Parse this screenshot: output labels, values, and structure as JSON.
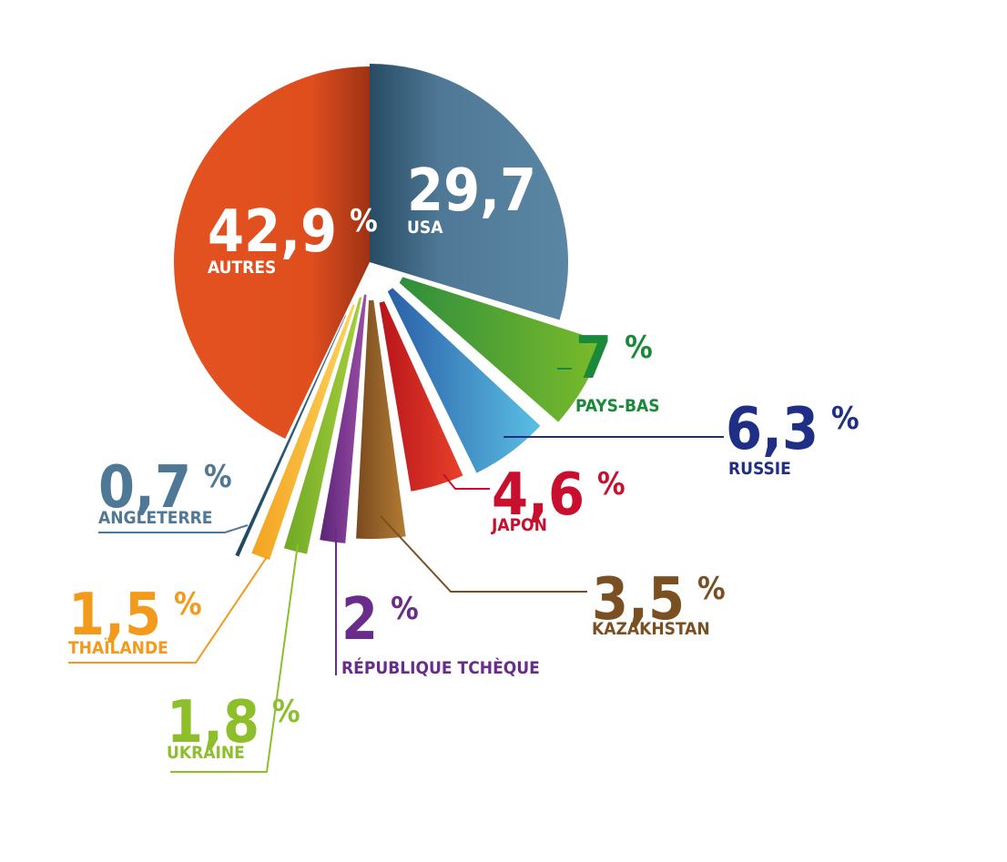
{
  "chart_data": {
    "type": "pie",
    "title": "",
    "slices": [
      {
        "label": "USA",
        "value": 29.7,
        "value_text": "29,7",
        "unit": "%",
        "color": "#4f7896"
      },
      {
        "label": "PAYS-BAS",
        "value": 7,
        "value_text": "7",
        "unit": "%",
        "color": "#6aac2a"
      },
      {
        "label": "RUSSIE",
        "value": 6.3,
        "value_text": "6,3",
        "unit": "%",
        "color": "#3ea6d6"
      },
      {
        "label": "JAPON",
        "value": 4.6,
        "value_text": "4,6",
        "unit": "%",
        "color": "#dc2a23"
      },
      {
        "label": "KAZAKHSTAN",
        "value": 3.5,
        "value_text": "3,5",
        "unit": "%",
        "color": "#9c6a2c"
      },
      {
        "label": "RÉPUBLIQUE TCHÈQUE",
        "value": 2,
        "value_text": "2",
        "unit": "%",
        "color": "#7d3b8d"
      },
      {
        "label": "UKRAINE",
        "value": 1.8,
        "value_text": "1,8",
        "unit": "%",
        "color": "#8cbf2a"
      },
      {
        "label": "THAÏLANDE",
        "value": 1.5,
        "value_text": "1,5",
        "unit": "%",
        "color": "#f5b22a"
      },
      {
        "label": "ANGLETERRE",
        "value": 0.7,
        "value_text": "0,7",
        "unit": "%",
        "color": "#2a5a78"
      },
      {
        "label": "AUTRES",
        "value": 42.9,
        "value_text": "42,9",
        "unit": "%",
        "color": "#e24e1f"
      }
    ],
    "label_colors": {
      "USA": "#ffffff",
      "PAYS-BAS": "#1a8a3a",
      "RUSSIE": "#1f2f86",
      "JAPON": "#c8102e",
      "KAZAKHSTAN": "#7a4f22",
      "RÉPUBLIQUE TCHÈQUE": "#6a2c8a",
      "UKRAINE": "#8cbf2a",
      "THAÏLANDE": "#f39a1c",
      "ANGLETERRE": "#4f7896",
      "AUTRES": "#ffffff"
    }
  }
}
